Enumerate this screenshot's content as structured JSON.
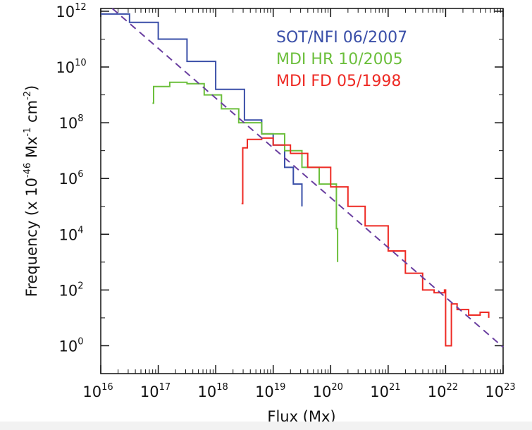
{
  "chart_data": {
    "type": "line",
    "title": "",
    "xlabel": "Flux (Mx)",
    "ylabel": {
      "main": "Frequency (x 10",
      "exp1": "-46",
      "mid": " Mx",
      "exp2": "-1",
      "mid2": " cm",
      "exp3": "-2",
      "end": ")"
    },
    "xscale": "log",
    "yscale": "log",
    "xlim_exp": [
      16,
      23
    ],
    "ylim_exp": [
      -1,
      12.1
    ],
    "x_ticks": [
      {
        "base": "10",
        "exp": "16",
        "value": 16
      },
      {
        "base": "10",
        "exp": "17",
        "value": 17
      },
      {
        "base": "10",
        "exp": "18",
        "value": 18
      },
      {
        "base": "10",
        "exp": "19",
        "value": 19
      },
      {
        "base": "10",
        "exp": "20",
        "value": 20
      },
      {
        "base": "10",
        "exp": "21",
        "value": 21
      },
      {
        "base": "10",
        "exp": "22",
        "value": 22
      },
      {
        "base": "10",
        "exp": "23",
        "value": 23
      }
    ],
    "y_ticks": [
      {
        "base": "10",
        "exp": "0",
        "value": 0
      },
      {
        "base": "10",
        "exp": "2",
        "value": 2
      },
      {
        "base": "10",
        "exp": "4",
        "value": 4
      },
      {
        "base": "10",
        "exp": "6",
        "value": 6
      },
      {
        "base": "10",
        "exp": "8",
        "value": 8
      },
      {
        "base": "10",
        "exp": "10",
        "value": 10
      },
      {
        "base": "10",
        "exp": "12",
        "value": 12
      }
    ],
    "grid": false,
    "legend_position": "top-right",
    "series": [
      {
        "name": "SOT/NFI 06/2007",
        "color": "#3a4fa8",
        "log_x": [
          16.0,
          16.5,
          17.0,
          17.5,
          18.0,
          18.5,
          18.8,
          19.0,
          19.2,
          19.35,
          19.5
        ],
        "log_y": [
          11.9,
          11.6,
          11.0,
          10.2,
          9.2,
          8.1,
          7.6,
          7.2,
          6.4,
          5.8,
          5.0
        ]
      },
      {
        "name": "MDI HR 10/2005",
        "color": "#6cbf3c",
        "log_x": [
          16.9,
          16.92,
          17.2,
          17.5,
          17.8,
          18.1,
          18.4,
          18.8,
          19.2,
          19.5,
          19.8,
          20.1,
          20.12
        ],
        "log_y": [
          8.7,
          9.3,
          9.45,
          9.4,
          9.0,
          8.5,
          8.0,
          7.6,
          7.0,
          6.4,
          5.8,
          4.2,
          3.0
        ]
      },
      {
        "name": "MDI FD 05/1998",
        "color": "#ee2a24",
        "log_x": [
          18.45,
          18.47,
          18.55,
          18.8,
          19.0,
          19.3,
          19.6,
          20.0,
          20.3,
          20.6,
          21.0,
          21.3,
          21.6,
          21.8,
          21.98,
          22.0,
          22.1,
          22.2,
          22.4,
          22.6,
          22.75
        ],
        "log_y": [
          5.1,
          7.1,
          7.4,
          7.45,
          7.2,
          6.9,
          6.4,
          5.7,
          5.0,
          4.3,
          3.4,
          2.6,
          2.0,
          1.9,
          2.0,
          0.0,
          1.5,
          1.3,
          1.1,
          1.2,
          1.0
        ]
      }
    ],
    "fit_line": {
      "color": "#6a3fa0",
      "log_x": [
        16.2,
        23.0
      ],
      "log_y": [
        12.1,
        -0.05
      ]
    }
  }
}
